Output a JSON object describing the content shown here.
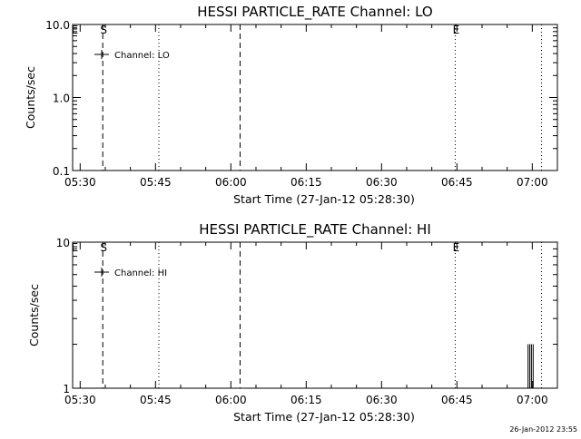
{
  "footer_timestamp": "26-Jan-2012 23:55",
  "chart_data": [
    {
      "type": "line",
      "title": "HESSI PARTICLE_RATE Channel: LO",
      "xlabel": "Start Time (27-Jan-12 05:28:30)",
      "ylabel": "Counts/sec",
      "yscale": "log",
      "xlim": [
        "05:28:30",
        "07:05:00"
      ],
      "ylim": [
        0.1,
        10.0
      ],
      "x_ticks": [
        "05:30",
        "05:45",
        "06:00",
        "06:15",
        "06:30",
        "06:45",
        "07:00"
      ],
      "y_ticks": [
        {
          "label": "10.0",
          "value": 10.0
        },
        {
          "label": "1.0",
          "value": 1.0
        },
        {
          "label": "0.1",
          "value": 0.1
        }
      ],
      "grid": false,
      "legend_position": "top-left",
      "legend": [
        {
          "name": "Channel: LO"
        }
      ],
      "series": [
        {
          "name": "Channel: LO",
          "points": []
        }
      ],
      "markers": [
        {
          "time": "05:28:45",
          "style": "none",
          "label": "E"
        },
        {
          "time": "05:34:30",
          "style": "dashed",
          "label": "S"
        },
        {
          "time": "05:45:40",
          "style": "dotted",
          "label": ""
        },
        {
          "time": "06:01:50",
          "style": "dashed",
          "label": ""
        },
        {
          "time": "06:44:40",
          "style": "dotted",
          "label": "E"
        },
        {
          "time": "07:01:50",
          "style": "dotted",
          "label": ""
        }
      ]
    },
    {
      "type": "line",
      "title": "HESSI PARTICLE_RATE Channel: HI",
      "xlabel": "Start Time (27-Jan-12 05:28:30)",
      "ylabel": "Counts/sec",
      "yscale": "log",
      "xlim": [
        "05:28:30",
        "07:05:00"
      ],
      "ylim": [
        1,
        10
      ],
      "x_ticks": [
        "05:30",
        "05:45",
        "06:00",
        "06:15",
        "06:30",
        "06:45",
        "07:00"
      ],
      "y_ticks": [
        {
          "label": "10",
          "value": 10
        },
        {
          "label": "1",
          "value": 1
        }
      ],
      "grid": false,
      "legend_position": "top-left",
      "legend": [
        {
          "name": "Channel: HI"
        }
      ],
      "series": [
        {
          "name": "Channel: HI",
          "points": [
            {
              "x": "06:59:10",
              "y": 1.0
            },
            {
              "x": "06:59:10",
              "y": 2.0
            },
            {
              "x": "06:59:10",
              "y": 1.0
            },
            {
              "x": "06:59:30",
              "y": 1.0
            },
            {
              "x": "06:59:30",
              "y": 2.0
            },
            {
              "x": "06:59:30",
              "y": 1.0
            },
            {
              "x": "06:59:50",
              "y": 1.0
            },
            {
              "x": "06:59:50",
              "y": 2.0
            },
            {
              "x": "06:59:50",
              "y": 1.0
            },
            {
              "x": "07:00:10",
              "y": 1.0
            },
            {
              "x": "07:00:10",
              "y": 2.0
            },
            {
              "x": "07:00:10",
              "y": 1.0
            }
          ]
        }
      ],
      "markers": [
        {
          "time": "05:28:45",
          "style": "none",
          "label": "E"
        },
        {
          "time": "05:34:30",
          "style": "dashed",
          "label": "S"
        },
        {
          "time": "05:45:40",
          "style": "dotted",
          "label": ""
        },
        {
          "time": "06:01:50",
          "style": "dashed",
          "label": ""
        },
        {
          "time": "06:44:40",
          "style": "dotted",
          "label": "E"
        },
        {
          "time": "07:01:50",
          "style": "dotted",
          "label": ""
        }
      ]
    }
  ]
}
